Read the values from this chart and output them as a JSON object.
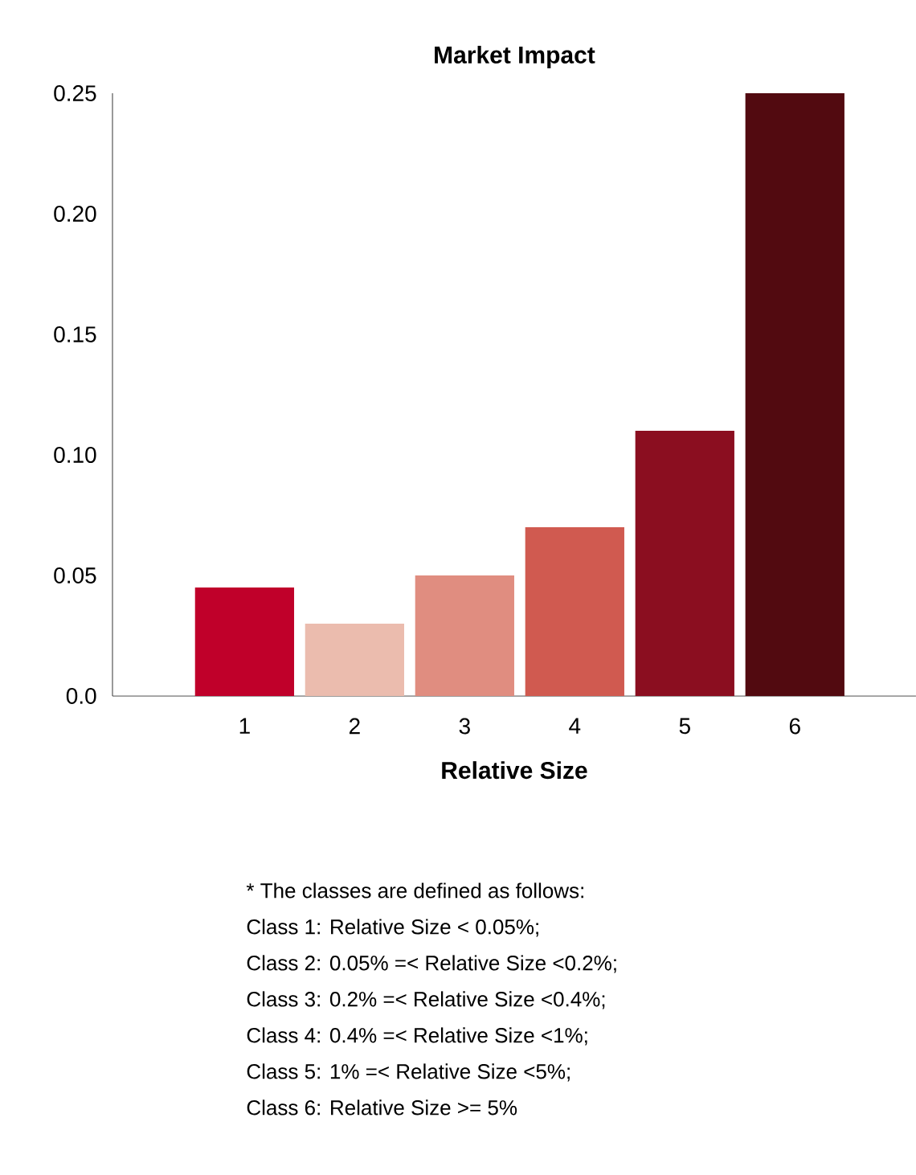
{
  "chart_data": {
    "type": "bar",
    "title": "Market Impact",
    "xlabel": "Relative Size",
    "categories": [
      "1",
      "2",
      "3",
      "4",
      "5",
      "6"
    ],
    "values": [
      0.045,
      0.03,
      0.05,
      0.07,
      0.11,
      0.25
    ],
    "colors": [
      "#c0002a",
      "#ebbcae",
      "#e08d80",
      "#d05a50",
      "#8b0e20",
      "#520a10"
    ],
    "ylim": [
      0,
      0.25
    ],
    "yticks": [
      {
        "value": 0,
        "label": "0.0"
      },
      0.05,
      {
        "value": 0.1,
        "label": "0.10"
      },
      0.15,
      {
        "value": 0.2,
        "label": "0.20"
      },
      0.25
    ],
    "annotations": [
      "* The classes are defined as follows:",
      "Class 1: Relative Size < 0.05%;",
      "Class 2: 0.05% =< Relative Size <0.2%;",
      "Class 3: 0.2% =< Relative Size <0.4%;",
      "Class 4: 0.4% =< Relative Size <1%;",
      "Class 5: 1% =< Relative Size <5%;",
      "Class 6: Relative Size >= 5%"
    ]
  }
}
